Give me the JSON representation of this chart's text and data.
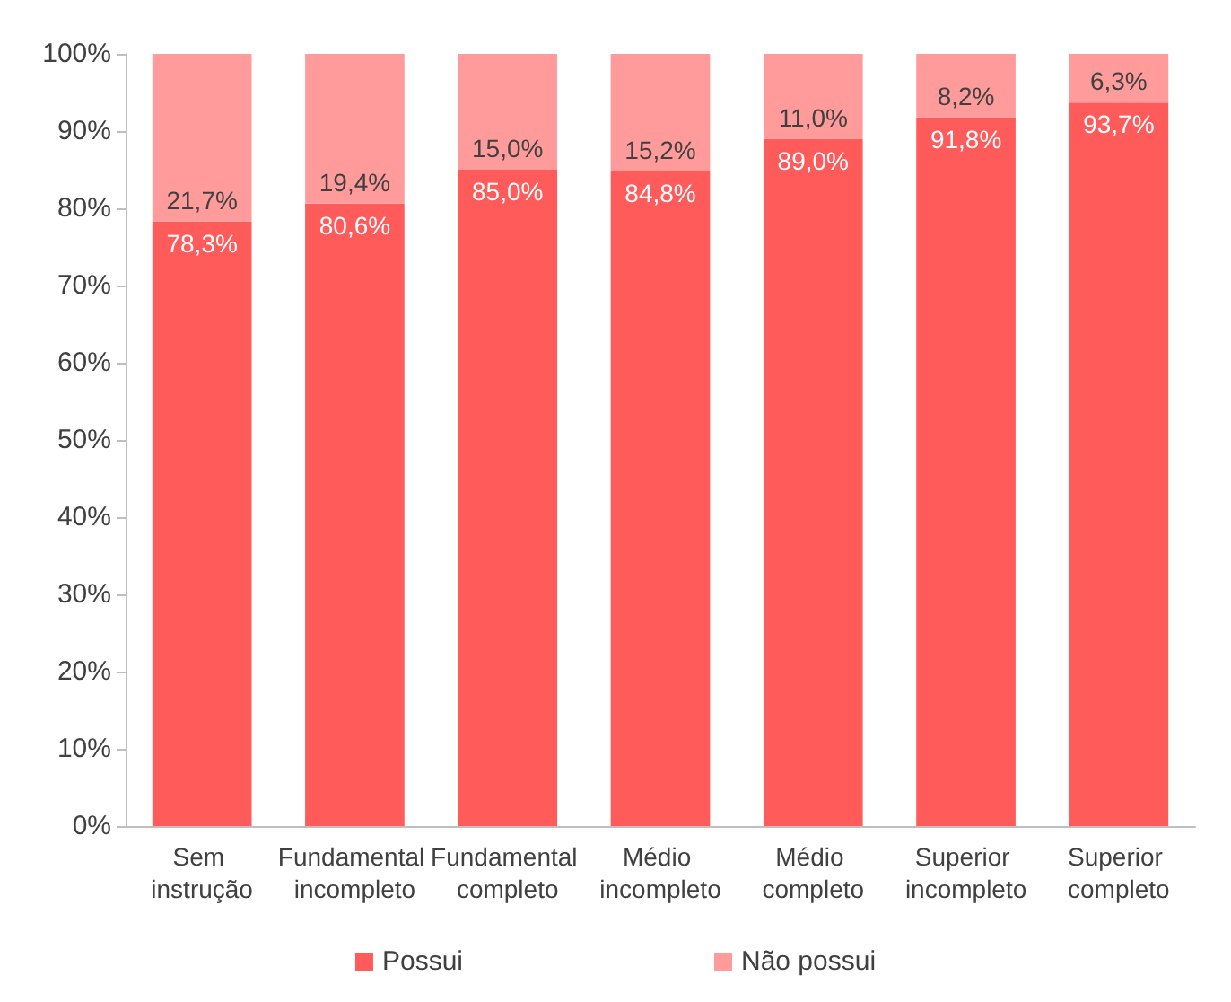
{
  "chart_data": {
    "type": "bar",
    "stacked": true,
    "categories": [
      "Sem instrução",
      "Fundamental incompleto",
      "Fundamental completo",
      "Médio incompleto",
      "Médio completo",
      "Superior incompleto",
      "Superior completo"
    ],
    "series": [
      {
        "name": "Possui",
        "color": "#ff5b5b",
        "values": [
          78.3,
          80.6,
          85.0,
          84.8,
          89.0,
          91.8,
          93.7
        ],
        "value_labels": [
          "78,3%",
          "80,6%",
          "85,0%",
          "84,8%",
          "89,0%",
          "91,8%",
          "93,7%"
        ]
      },
      {
        "name": "Não possui",
        "color": "#ff9b9b",
        "values": [
          21.7,
          19.4,
          15.0,
          15.2,
          11.0,
          8.2,
          6.3
        ],
        "value_labels": [
          "21,7%",
          "19,4%",
          "15,0%",
          "15,2%",
          "11,0%",
          "8,2%",
          "6,3%"
        ]
      }
    ],
    "ylim": [
      0,
      100
    ],
    "yticks": [
      {
        "value": 0,
        "label": "0%"
      },
      {
        "value": 10,
        "label": "10%"
      },
      {
        "value": 20,
        "label": "20%"
      },
      {
        "value": 30,
        "label": "30%"
      },
      {
        "value": 40,
        "label": "40%"
      },
      {
        "value": 50,
        "label": "50%"
      },
      {
        "value": 60,
        "label": "60%"
      },
      {
        "value": 70,
        "label": "70%"
      },
      {
        "value": 80,
        "label": "80%"
      },
      {
        "value": 90,
        "label": "90%"
      },
      {
        "value": 100,
        "label": "100%"
      }
    ],
    "grid": false,
    "legend": "bottom"
  }
}
